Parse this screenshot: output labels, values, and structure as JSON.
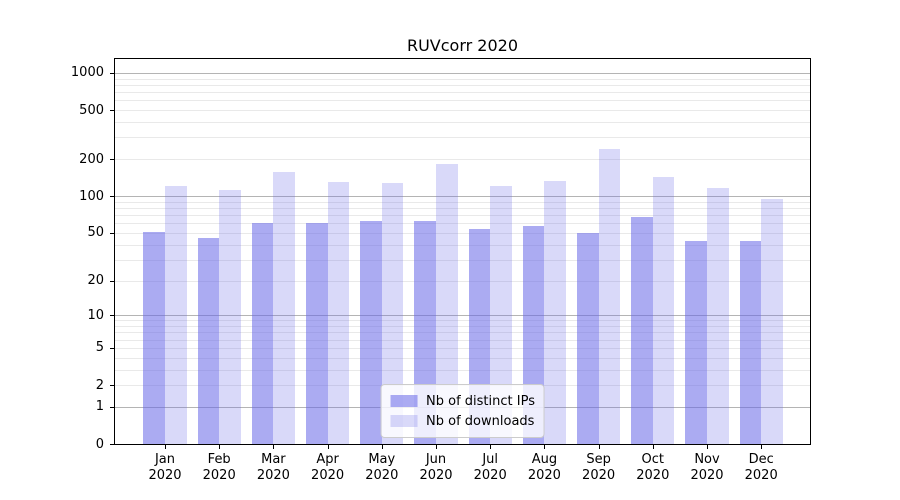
{
  "chart_data": {
    "type": "bar",
    "title": "RUVcorr 2020",
    "categories": [
      "Jan",
      "Feb",
      "Mar",
      "Apr",
      "May",
      "Jun",
      "Jul",
      "Aug",
      "Sep",
      "Oct",
      "Nov",
      "Dec"
    ],
    "category_year": "2020",
    "series": [
      {
        "name": "Nb of distinct IPs",
        "values": [
          51,
          45,
          60,
          60,
          62,
          63,
          54,
          57,
          50,
          68,
          43,
          43
        ],
        "fill": "rgba(102,102,232,0.55)",
        "rendered_hex": "#ababf3"
      },
      {
        "name": "Nb of downloads",
        "values": [
          122,
          112,
          158,
          130,
          127,
          183,
          120,
          134,
          242,
          143,
          116,
          95
        ],
        "fill": "rgba(102,102,232,0.25)",
        "rendered_hex": "#dcdcf9"
      }
    ],
    "y_axis": {
      "ticks": [
        0,
        1,
        2,
        5,
        10,
        20,
        50,
        100,
        200,
        500,
        1000
      ],
      "scale": "log1p",
      "ylim": [
        0,
        1295
      ]
    },
    "grid": {
      "on": true,
      "major_at": [
        1,
        10,
        100,
        1000
      ],
      "major_color": "#b4b4b4",
      "minor_color": "#e9e9e9"
    },
    "legend": {
      "position": "lower center"
    }
  }
}
